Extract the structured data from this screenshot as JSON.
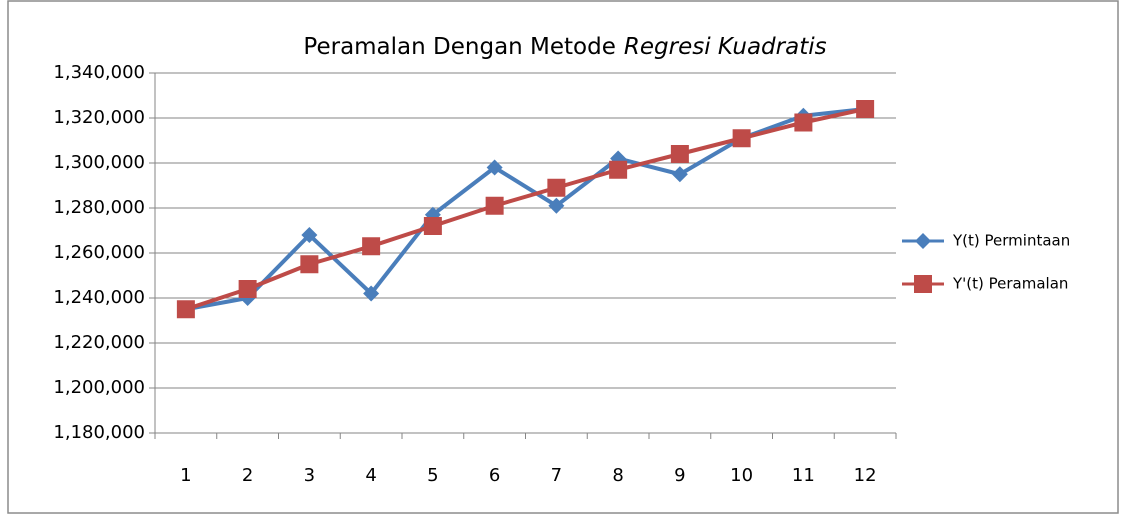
{
  "chart_data": {
    "type": "line",
    "title": [
      "Peramalan Dengan Metode",
      "Regresi Kuadratis"
    ],
    "categories": [
      "1",
      "2",
      "3",
      "4",
      "5",
      "6",
      "7",
      "8",
      "9",
      "10",
      "11",
      "12"
    ],
    "series": [
      {
        "name": "Y(t) Permintaan",
        "color": "#4a7ebb",
        "marker": "diamond",
        "values": [
          1235000,
          1240000,
          1268000,
          1242000,
          1277000,
          1298000,
          1281000,
          1302000,
          1295000,
          1311000,
          1321000,
          1324000
        ]
      },
      {
        "name": "Y'(t) Peramalan",
        "color": "#be4b48",
        "marker": "square",
        "values": [
          1235000,
          1244000,
          1255000,
          1263000,
          1272000,
          1281000,
          1289000,
          1297000,
          1304000,
          1311000,
          1318000,
          1324000
        ]
      }
    ],
    "ylim": [
      1180000,
      1340000
    ],
    "yticks": [
      {
        "value": 1180000,
        "label": "1,180,000"
      },
      {
        "value": 1200000,
        "label": "1,200,000"
      },
      {
        "value": 1220000,
        "label": "1,220,000"
      },
      {
        "value": 1240000,
        "label": "1,240,000"
      },
      {
        "value": 1260000,
        "label": "1,260,000"
      },
      {
        "value": 1280000,
        "label": "1,280,000"
      },
      {
        "value": 1300000,
        "label": "1,300,000"
      },
      {
        "value": 1320000,
        "label": "1,320,000"
      },
      {
        "value": 1340000,
        "label": "1,340,000"
      }
    ],
    "grid": true,
    "legend": "right"
  }
}
